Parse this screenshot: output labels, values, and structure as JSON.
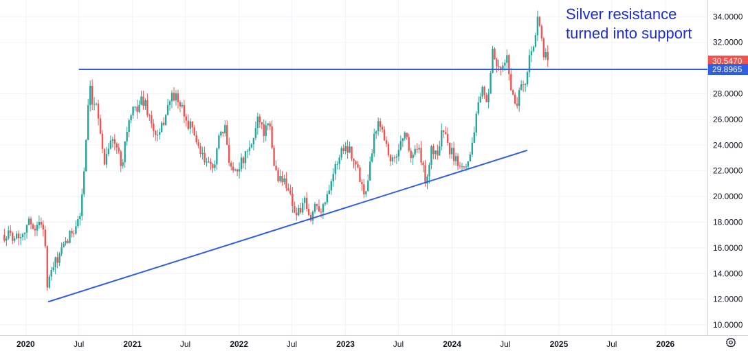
{
  "chart_data": {
    "type": "candlestick",
    "y_axis": {
      "ticks": [
        "10.0000",
        "12.0000",
        "14.0000",
        "16.0000",
        "18.0000",
        "20.0000",
        "22.0000",
        "24.0000",
        "26.0000",
        "28.0000",
        "32.0000",
        "34.0000"
      ],
      "range": [
        9.2,
        35.3
      ],
      "position": "right"
    },
    "x_axis": {
      "ticks": [
        {
          "label": "2020",
          "date": "2020-01-01",
          "bold": true
        },
        {
          "label": "Jul",
          "date": "2020-07-01",
          "bold": false
        },
        {
          "label": "2021",
          "date": "2021-01-01",
          "bold": true
        },
        {
          "label": "Jul",
          "date": "2021-07-01",
          "bold": false
        },
        {
          "label": "2022",
          "date": "2022-01-01",
          "bold": true
        },
        {
          "label": "Jul",
          "date": "2022-07-01",
          "bold": false
        },
        {
          "label": "2023",
          "date": "2023-01-01",
          "bold": true
        },
        {
          "label": "Jul",
          "date": "2023-07-01",
          "bold": false
        },
        {
          "label": "2024",
          "date": "2024-01-01",
          "bold": true
        },
        {
          "label": "Jul",
          "date": "2024-07-01",
          "bold": false
        },
        {
          "label": "2025",
          "date": "2025-01-01",
          "bold": true
        },
        {
          "label": "Jul",
          "date": "2025-07-01",
          "bold": false
        },
        {
          "label": "2026",
          "date": "2026-01-01",
          "bold": true
        }
      ],
      "range": [
        "2019-10-05",
        "2026-05-25"
      ]
    },
    "grid": true,
    "series": [
      {
        "kind": "candlestick",
        "up_color": "#26a69a",
        "down_color": "#ef5350",
        "points": [
          [
            "2019-10-20",
            17.0
          ],
          [
            "2019-12-15",
            17.0
          ],
          [
            "2020-01-10",
            18.0
          ],
          [
            "2020-02-05",
            17.6
          ],
          [
            "2020-02-25",
            18.0
          ],
          [
            "2020-03-05",
            17.5
          ],
          [
            "2020-03-16",
            12.4
          ],
          [
            "2020-03-25",
            14.0
          ],
          [
            "2020-04-15",
            15.0
          ],
          [
            "2020-05-15",
            16.2
          ],
          [
            "2020-06-15",
            17.6
          ],
          [
            "2020-07-05",
            18.5
          ],
          [
            "2020-07-21",
            22.5
          ],
          [
            "2020-08-07",
            28.5
          ],
          [
            "2020-08-20",
            26.5
          ],
          [
            "2020-09-01",
            27.5
          ],
          [
            "2020-09-25",
            22.5
          ],
          [
            "2020-10-15",
            24.5
          ],
          [
            "2020-11-05",
            24.0
          ],
          [
            "2020-11-25",
            22.5
          ],
          [
            "2020-12-15",
            25.5
          ],
          [
            "2021-01-01",
            26.5
          ],
          [
            "2021-02-01",
            27.5
          ],
          [
            "2021-02-15",
            27.2
          ],
          [
            "2021-03-15",
            25.0
          ],
          [
            "2021-04-01",
            24.5
          ],
          [
            "2021-05-01",
            27.0
          ],
          [
            "2021-05-20",
            28.0
          ],
          [
            "2021-06-15",
            27.0
          ],
          [
            "2021-07-01",
            26.0
          ],
          [
            "2021-08-01",
            25.0
          ],
          [
            "2021-08-15",
            23.5
          ],
          [
            "2021-09-15",
            22.5
          ],
          [
            "2021-10-01",
            22.0
          ],
          [
            "2021-10-25",
            24.5
          ],
          [
            "2021-11-15",
            25.2
          ],
          [
            "2021-12-01",
            22.5
          ],
          [
            "2021-12-15",
            22.0
          ],
          [
            "2022-01-15",
            22.8
          ],
          [
            "2022-02-15",
            24.0
          ],
          [
            "2022-03-08",
            26.5
          ],
          [
            "2022-03-25",
            25.0
          ],
          [
            "2022-04-15",
            25.5
          ],
          [
            "2022-05-01",
            22.5
          ],
          [
            "2022-05-15",
            21.5
          ],
          [
            "2022-06-15",
            21.0
          ],
          [
            "2022-07-15",
            18.5
          ],
          [
            "2022-08-15",
            19.5
          ],
          [
            "2022-09-01",
            18.0
          ],
          [
            "2022-09-20",
            19.5
          ],
          [
            "2022-10-15",
            19.0
          ],
          [
            "2022-11-01",
            20.5
          ],
          [
            "2022-11-15",
            21.5
          ],
          [
            "2022-12-01",
            22.5
          ],
          [
            "2022-12-20",
            23.8
          ],
          [
            "2023-01-15",
            23.8
          ],
          [
            "2023-02-15",
            21.8
          ],
          [
            "2023-03-08",
            20.2
          ],
          [
            "2023-03-25",
            22.5
          ],
          [
            "2023-04-15",
            25.5
          ],
          [
            "2023-05-05",
            25.8
          ],
          [
            "2023-05-25",
            23.5
          ],
          [
            "2023-06-15",
            22.5
          ],
          [
            "2023-07-15",
            24.8
          ],
          [
            "2023-08-01",
            24.5
          ],
          [
            "2023-08-15",
            22.8
          ],
          [
            "2023-09-01",
            24.0
          ],
          [
            "2023-09-15",
            23.0
          ],
          [
            "2023-10-05",
            21.0
          ],
          [
            "2023-10-20",
            23.5
          ],
          [
            "2023-11-15",
            23.5
          ],
          [
            "2023-12-01",
            25.5
          ],
          [
            "2023-12-15",
            24.0
          ],
          [
            "2024-01-15",
            22.8
          ],
          [
            "2024-02-15",
            22.5
          ],
          [
            "2024-03-01",
            23.0
          ],
          [
            "2024-03-15",
            25.0
          ],
          [
            "2024-04-05",
            27.5
          ],
          [
            "2024-04-20",
            28.5
          ],
          [
            "2024-05-01",
            26.5
          ],
          [
            "2024-05-20",
            31.5
          ],
          [
            "2024-06-01",
            30.0
          ],
          [
            "2024-06-15",
            29.5
          ],
          [
            "2024-07-05",
            31.0
          ],
          [
            "2024-07-25",
            28.0
          ],
          [
            "2024-08-08",
            27.0
          ],
          [
            "2024-08-25",
            29.0
          ],
          [
            "2024-09-10",
            28.5
          ],
          [
            "2024-09-25",
            31.8
          ],
          [
            "2024-10-10",
            31.5
          ],
          [
            "2024-10-21",
            34.2
          ],
          [
            "2024-11-01",
            32.5
          ],
          [
            "2024-11-10",
            30.5
          ],
          [
            "2024-11-20",
            31.0
          ],
          [
            "2024-11-28",
            30.5
          ]
        ]
      }
    ],
    "lines": [
      {
        "kind": "horizontal",
        "label": "resistance",
        "from": "2020-07-01",
        "to": "2026-05-25",
        "y": 29.9,
        "color": "#2f5fe0"
      },
      {
        "kind": "trendline",
        "label": "support",
        "from": [
          "2020-03-18",
          11.8
        ],
        "to": [
          "2024-09-15",
          23.6
        ],
        "color": "#2f5fe0"
      }
    ],
    "price_tags": [
      {
        "text": "30.5470",
        "background": "#ef5350",
        "value": 30.547
      },
      {
        "text": "29.8965",
        "background": "#2f5fe0",
        "value": 29.8965
      }
    ],
    "annotation": {
      "lines": [
        "Silver resistance",
        "turned into support"
      ],
      "color": "#1e2ecc"
    }
  },
  "toolbar": {
    "settings_icon": "settings-gear-icon"
  }
}
